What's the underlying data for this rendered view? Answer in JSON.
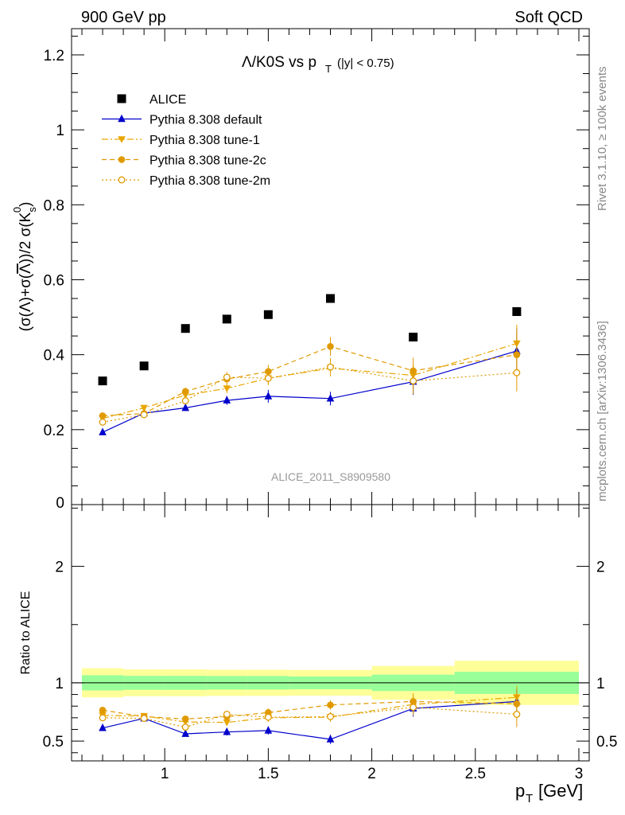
{
  "header": {
    "left": "900 GeV pp",
    "right": "Soft QCD"
  },
  "side": {
    "rivet": "Rivet 3.1.10, ≥ 100k events",
    "mcplots": "mcplots.cern.ch [arXiv:1306.3436]"
  },
  "watermark": "ALICE_2011_S8909580",
  "chart_data": [
    {
      "type": "scatter",
      "panel": "main",
      "title": "Λ/K0S vs p_T (|y| < 0.75)",
      "ylabel": "(σ(Λ)+σ(Λ̅))/2 σ(K⁰_s)",
      "xlim": [
        0.55,
        3.05
      ],
      "ylim": [
        0,
        1.27
      ],
      "yticks": [
        "0",
        "0.2",
        "0.4",
        "0.6",
        "0.8",
        "1",
        "1.2"
      ],
      "legend_position": "top-left",
      "series": [
        {
          "name": "ALICE",
          "color": "#000000",
          "marker": "square",
          "line": "none",
          "x": [
            0.7,
            0.9,
            1.1,
            1.3,
            1.5,
            1.8,
            2.2,
            2.7
          ],
          "y": [
            0.33,
            0.37,
            0.47,
            0.495,
            0.507,
            0.55,
            0.447,
            0.515
          ]
        },
        {
          "name": "Pythia 8.308 default",
          "color": "#0000cc",
          "marker": "triangle-up",
          "line": "solid",
          "x": [
            0.7,
            0.9,
            1.1,
            1.3,
            1.5,
            1.8,
            2.2,
            2.7
          ],
          "y": [
            0.193,
            0.244,
            0.258,
            0.278,
            0.289,
            0.283,
            0.328,
            0.41
          ],
          "err": [
            0.006,
            0.007,
            0.008,
            0.012,
            0.017,
            0.018,
            0.035,
            0.06
          ]
        },
        {
          "name": "Pythia 8.308 tune-1",
          "color": "#e8a600",
          "marker": "triangle-down",
          "line": "dashdot",
          "x": [
            0.7,
            0.9,
            1.1,
            1.3,
            1.5,
            1.8,
            2.2,
            2.7
          ],
          "y": [
            0.23,
            0.258,
            0.292,
            0.31,
            0.337,
            0.364,
            0.345,
            0.43
          ],
          "err": [
            0.007,
            0.008,
            0.01,
            0.013,
            0.017,
            0.022,
            0.03,
            0.05
          ]
        },
        {
          "name": "Pythia 8.308 tune-2c",
          "color": "#e09a00",
          "marker": "circle",
          "line": "dashed",
          "x": [
            0.7,
            0.9,
            1.1,
            1.3,
            1.5,
            1.8,
            2.2,
            2.7
          ],
          "y": [
            0.237,
            0.243,
            0.302,
            0.335,
            0.355,
            0.422,
            0.357,
            0.4
          ],
          "err": [
            0.007,
            0.008,
            0.01,
            0.014,
            0.018,
            0.025,
            0.035,
            0.06
          ]
        },
        {
          "name": "Pythia 8.308 tune-2m",
          "color": "#e09a00",
          "marker": "circle-open",
          "line": "dotted",
          "x": [
            0.7,
            0.9,
            1.1,
            1.3,
            1.5,
            1.8,
            2.2,
            2.7
          ],
          "y": [
            0.22,
            0.24,
            0.277,
            0.34,
            0.337,
            0.367,
            0.33,
            0.352
          ],
          "err": [
            0.007,
            0.008,
            0.01,
            0.014,
            0.018,
            0.024,
            0.035,
            0.05
          ]
        }
      ]
    },
    {
      "type": "scatter",
      "panel": "ratio",
      "ylabel": "Ratio to ALICE",
      "xlabel": "p_T [GeV]",
      "xlim": [
        0.55,
        3.05
      ],
      "ylim": [
        0.33,
        2.53
      ],
      "xticks": [
        "1",
        "1.5",
        "2",
        "2.5",
        "3"
      ],
      "yticks": [
        "0.5",
        "1",
        "2"
      ],
      "bands": [
        {
          "x0": 0.6,
          "x1": 0.8,
          "inner": [
            0.935,
            1.065
          ],
          "outer": [
            0.875,
            1.125
          ]
        },
        {
          "x0": 0.8,
          "x1": 1.0,
          "inner": [
            0.94,
            1.06
          ],
          "outer": [
            0.885,
            1.115
          ]
        },
        {
          "x0": 1.0,
          "x1": 1.2,
          "inner": [
            0.94,
            1.06
          ],
          "outer": [
            0.885,
            1.115
          ]
        },
        {
          "x0": 1.2,
          "x1": 1.4,
          "inner": [
            0.942,
            1.058
          ],
          "outer": [
            0.888,
            1.112
          ]
        },
        {
          "x0": 1.4,
          "x1": 1.6,
          "inner": [
            0.942,
            1.058
          ],
          "outer": [
            0.888,
            1.112
          ]
        },
        {
          "x0": 1.6,
          "x1": 2.0,
          "inner": [
            0.945,
            1.055
          ],
          "outer": [
            0.89,
            1.11
          ]
        },
        {
          "x0": 2.0,
          "x1": 2.4,
          "inner": [
            0.93,
            1.07
          ],
          "outer": [
            0.855,
            1.145
          ]
        },
        {
          "x0": 2.4,
          "x1": 3.0,
          "inner": [
            0.905,
            1.095
          ],
          "outer": [
            0.81,
            1.19
          ]
        }
      ],
      "series": [
        {
          "name": "Pythia 8.308 default",
          "x": [
            0.7,
            0.9,
            1.1,
            1.3,
            1.5,
            1.8,
            2.2,
            2.7
          ],
          "y": [
            0.612,
            0.695,
            0.562,
            0.578,
            0.59,
            0.515,
            0.78,
            0.84
          ],
          "err": [
            0.015,
            0.02,
            0.02,
            0.03,
            0.035,
            0.04,
            0.07,
            0.11
          ]
        },
        {
          "name": "Pythia 8.308 tune-1",
          "x": [
            0.7,
            0.9,
            1.1,
            1.3,
            1.5,
            1.8,
            2.2,
            2.7
          ],
          "y": [
            0.72,
            0.715,
            0.665,
            0.66,
            0.7,
            0.705,
            0.815,
            0.875
          ],
          "err": [
            0.02,
            0.025,
            0.025,
            0.03,
            0.035,
            0.04,
            0.07,
            0.1
          ]
        },
        {
          "name": "Pythia 8.308 tune-2c",
          "x": [
            0.7,
            0.9,
            1.1,
            1.3,
            1.5,
            1.8,
            2.2,
            2.7
          ],
          "y": [
            0.765,
            0.71,
            0.69,
            0.71,
            0.745,
            0.81,
            0.84,
            0.82
          ],
          "err": [
            0.02,
            0.025,
            0.025,
            0.03,
            0.035,
            0.04,
            0.07,
            0.11
          ]
        },
        {
          "name": "Pythia 8.308 tune-2m",
          "x": [
            0.7,
            0.9,
            1.1,
            1.3,
            1.5,
            1.8,
            2.2,
            2.7
          ],
          "y": [
            0.7,
            0.695,
            0.62,
            0.73,
            0.705,
            0.71,
            0.79,
            0.73
          ],
          "err": [
            0.02,
            0.025,
            0.025,
            0.03,
            0.035,
            0.04,
            0.07,
            0.11
          ]
        }
      ]
    }
  ]
}
